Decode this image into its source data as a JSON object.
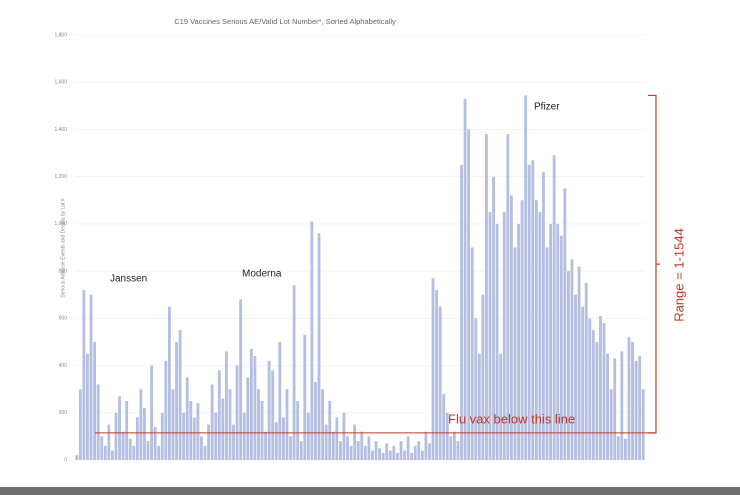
{
  "chart_data": {
    "type": "bar",
    "title": "C19 Vaccines Serious AE/Valid Lot Number*, Sorted Alphabetically",
    "y_label": "Serious Adverse Events and Deaths by Lot #",
    "color": "#b6bfe2",
    "ylim": [
      0,
      1800
    ],
    "yticks": [
      0,
      200,
      400,
      600,
      800,
      {
        "value": 1000,
        "label": "1,000"
      },
      {
        "value": 1200,
        "label": "1,200"
      },
      {
        "value": 1400,
        "label": "1,400"
      },
      {
        "value": 1600,
        "label": "1,600"
      },
      {
        "value": 1800,
        "label": "1,800"
      }
    ],
    "grid": true,
    "values": [
      20,
      300,
      720,
      450,
      700,
      500,
      320,
      100,
      60,
      150,
      40,
      200,
      270,
      120,
      250,
      90,
      60,
      180,
      300,
      220,
      80,
      400,
      140,
      60,
      200,
      420,
      650,
      300,
      500,
      550,
      200,
      350,
      250,
      180,
      240,
      100,
      60,
      150,
      320,
      200,
      380,
      260,
      460,
      300,
      150,
      400,
      680,
      200,
      350,
      470,
      440,
      300,
      250,
      120,
      420,
      380,
      160,
      500,
      180,
      300,
      100,
      740,
      250,
      80,
      530,
      200,
      1010,
      330,
      960,
      300,
      150,
      250,
      120,
      180,
      80,
      200,
      100,
      60,
      150,
      80,
      120,
      60,
      100,
      40,
      80,
      50,
      30,
      70,
      40,
      60,
      30,
      80,
      40,
      100,
      30,
      60,
      80,
      40,
      120,
      70,
      770,
      720,
      650,
      280,
      200,
      100,
      120,
      80,
      1250,
      1530,
      1400,
      900,
      600,
      450,
      700,
      1380,
      1050,
      1200,
      1000,
      450,
      1050,
      1380,
      1120,
      900,
      1000,
      1100,
      1544,
      1250,
      1270,
      1100,
      1050,
      1220,
      900,
      1000,
      1290,
      1000,
      950,
      1150,
      800,
      850,
      700,
      820,
      650,
      750,
      600,
      550,
      500,
      610,
      580,
      450,
      300,
      430,
      100,
      460,
      90,
      520,
      500,
      420,
      440,
      300
    ],
    "annotations": [
      "Janssen",
      "Moderna",
      "Pfizer",
      "Flu vax below this line",
      "Range = 1-1544"
    ],
    "reference_line": {
      "value": 115,
      "color": "#c0392b"
    }
  }
}
